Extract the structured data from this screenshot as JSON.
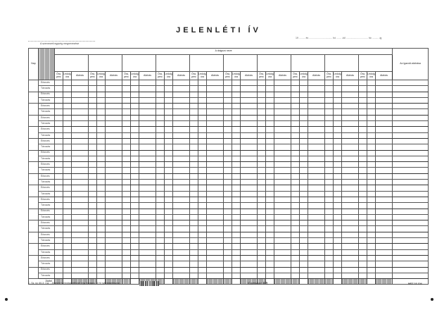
{
  "header": {
    "title": "JELENLÉTI ÍV",
    "period": "19 ......... év .................................. hó ....... -tól ................................ hó ......... -ig",
    "unit_label": "A szervezeti egység megnevezése"
  },
  "table": {
    "day_header": "Nap",
    "employee_name_header": "A dolgozó neve",
    "signature_header": "Az igazoló aláírása",
    "sub_headers": [
      "Óra, perc",
      "Ledolg. óra",
      "Aláírás"
    ],
    "employee_count": 10,
    "day_count": 17,
    "row_labels": [
      "Érkezés",
      "Távozás"
    ],
    "total_label": "Átvitel"
  },
  "footer": {
    "form_code": "C. Sz. ny. 60-3. r.sz. - Jelenléti ív (öndiszkrétívvel, egy hónapra, 10 fő nyilvántartására) -",
    "publisher": "Kamkier Kft.",
    "standard": "MSZ 16 104"
  },
  "colors": {
    "ink": "#222222",
    "shade": "#aaaaaa"
  }
}
